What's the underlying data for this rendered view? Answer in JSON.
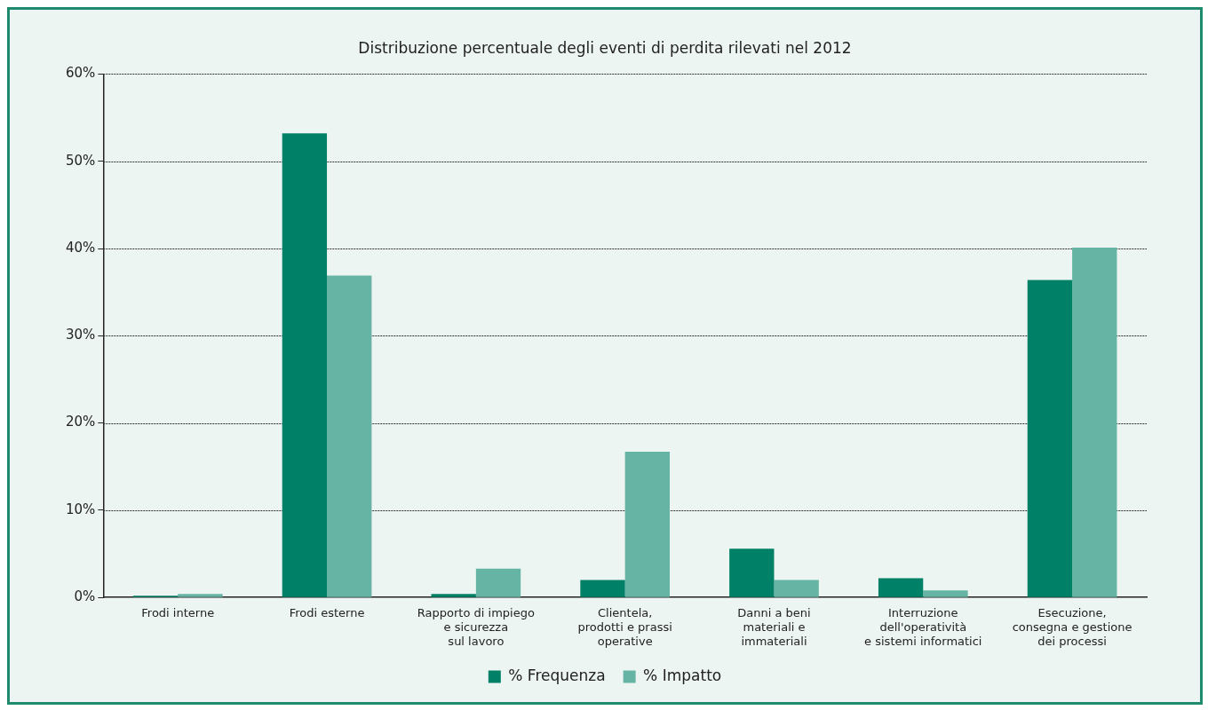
{
  "chart_data": {
    "type": "bar",
    "title": "Distribuzione percentuale degli eventi di perdita rilevati nel 2012",
    "categories": [
      "Frodi interne",
      "Frodi esterne",
      "Rapporto di impiego\ne sicurezza\nsul lavoro",
      "Clientela,\nprodotti e prassi\noperative",
      "Danni a beni\nmateriali e\nimmateriali",
      "Interruzione\ndell'operatività\ne sistemi informatici",
      "Esecuzione,\nconsegna e gestione\ndei processi"
    ],
    "series": [
      {
        "name": "% Frequenza",
        "color": "#008066",
        "values": [
          0.2,
          53.2,
          0.4,
          2.0,
          5.6,
          2.2,
          36.4
        ]
      },
      {
        "name": "% Impatto",
        "color": "#66b4a4",
        "values": [
          0.4,
          36.9,
          3.3,
          16.7,
          2.0,
          0.8,
          40.1
        ]
      }
    ],
    "ylim": [
      0,
      60
    ],
    "yticks": [
      {
        "value": 0,
        "label": "0%"
      },
      {
        "value": 10,
        "label": "10%"
      },
      {
        "value": 20,
        "label": "20%"
      },
      {
        "value": 30,
        "label": "30%"
      },
      {
        "value": 40,
        "label": "40%"
      },
      {
        "value": 50,
        "label": "50%"
      },
      {
        "value": 60,
        "label": "60%"
      }
    ],
    "grid": "y",
    "legend": "bottom"
  }
}
